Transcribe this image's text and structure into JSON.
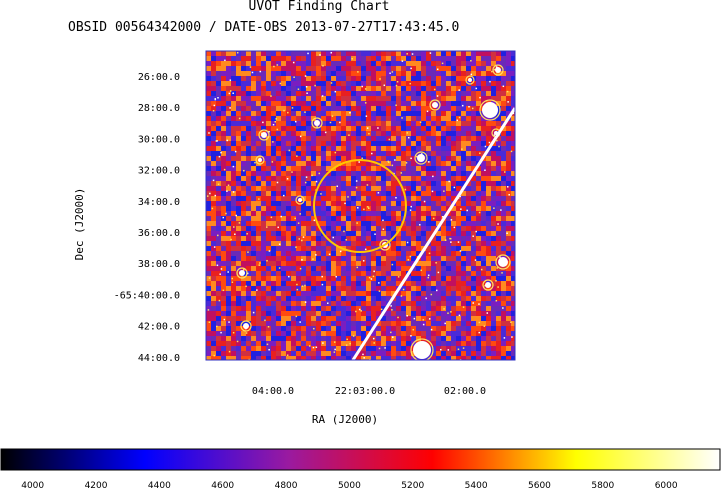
{
  "chart_data": {
    "type": "heatmap",
    "title": "UVOT Finding Chart",
    "subtitle": "OBSID 00564342000 / DATE-OBS 2013-07-27T17:43:45.0",
    "xlabel": "RA (J2000)",
    "ylabel": "Dec (J2000)",
    "x_ticks": [
      "04:00.0",
      "22:03:00.0",
      "02:00.0"
    ],
    "y_ticks": [
      "26:00.0",
      "28:00.0",
      "30:00.0",
      "32:00.0",
      "34:00.0",
      "36:00.0",
      "38:00.0",
      "-65:40:00.0",
      "42:00.0",
      "44:00.0"
    ],
    "colorbar": {
      "min": 3900,
      "max": 6170,
      "ticks": [
        4000,
        4200,
        4400,
        4600,
        4800,
        5000,
        5200,
        5400,
        5600,
        5800,
        6000
      ],
      "colors": [
        "#000000",
        "#0000ff",
        "#9a1aa0",
        "#ff0000",
        "#ffff00",
        "#ffffff"
      ]
    },
    "annotations": {
      "circle_color": "#ffc800",
      "streak_color": "#ffffff"
    }
  }
}
